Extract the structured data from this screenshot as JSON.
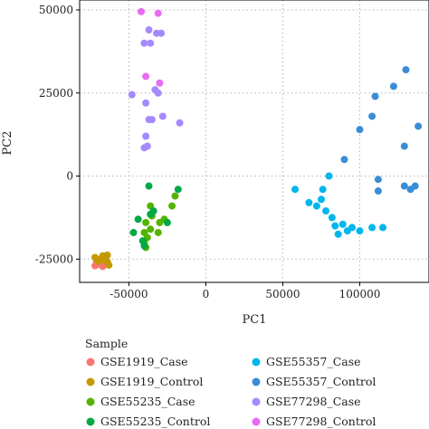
{
  "chart_data": {
    "type": "scatter",
    "xlabel": "PC1",
    "ylabel": "PC2",
    "xlim": [
      -82000,
      145000
    ],
    "ylim": [
      -32000,
      53000
    ],
    "x_ticks": [
      -50000,
      0,
      50000,
      100000
    ],
    "x_tick_labels": [
      "-50000",
      "0",
      "50000",
      "100000"
    ],
    "y_ticks": [
      -25000,
      0,
      25000,
      50000
    ],
    "y_tick_labels": [
      "-25000",
      "0",
      "25000",
      "50000"
    ],
    "grid": true,
    "legend_title": "Sample",
    "legend_position": "bottom",
    "series": [
      {
        "name": "GSE1919_Case",
        "color": "#F8766D",
        "points": [
          [
            -72000,
            -27000
          ],
          [
            -70000,
            -26000
          ],
          [
            -67000,
            -27200
          ],
          [
            -69000,
            -25200
          ],
          [
            -65000,
            -26500
          ],
          [
            -71000,
            -25600
          ],
          [
            -68000,
            -26800
          ]
        ]
      },
      {
        "name": "GSE1919_Control",
        "color": "#C49A00",
        "points": [
          [
            -72000,
            -24500
          ],
          [
            -67000,
            -24000
          ],
          [
            -64000,
            -23800
          ],
          [
            -66000,
            -25200
          ],
          [
            -64000,
            -25800
          ],
          [
            -70000,
            -25600
          ],
          [
            -63000,
            -26800
          ]
        ]
      },
      {
        "name": "GSE55235_Case",
        "color": "#53B400",
        "points": [
          [
            -40000,
            -20000
          ],
          [
            -39000,
            -21500
          ],
          [
            -38000,
            -18500
          ],
          [
            -40000,
            -17000
          ],
          [
            -36000,
            -16000
          ],
          [
            -39000,
            -14000
          ],
          [
            -35000,
            -12000
          ],
          [
            -31000,
            -17000
          ],
          [
            -27000,
            -13000
          ],
          [
            -22000,
            -9000
          ],
          [
            -20000,
            -6000
          ],
          [
            -30000,
            -14000
          ],
          [
            -36000,
            -9000
          ]
        ]
      },
      {
        "name": "GSE55235_Control",
        "color": "#00A846",
        "points": [
          [
            -47000,
            -17000
          ],
          [
            -44000,
            -13000
          ],
          [
            -41000,
            -19500
          ],
          [
            -36000,
            -11500
          ],
          [
            -34000,
            -10500
          ],
          [
            -25000,
            -14000
          ],
          [
            -18000,
            -4000
          ],
          [
            -37000,
            -3000
          ],
          [
            -40000,
            -21000
          ]
        ]
      },
      {
        "name": "GSE55357_Case",
        "color": "#00B6EB",
        "points": [
          [
            58000,
            -4000
          ],
          [
            67000,
            -8000
          ],
          [
            72000,
            -9000
          ],
          [
            75000,
            -7000
          ],
          [
            78000,
            -10500
          ],
          [
            82000,
            -12500
          ],
          [
            84000,
            -15000
          ],
          [
            86000,
            -17500
          ],
          [
            89000,
            -14500
          ],
          [
            92000,
            -16500
          ],
          [
            95000,
            -15500
          ],
          [
            100000,
            -16500
          ],
          [
            108000,
            -15500
          ],
          [
            115000,
            -15500
          ],
          [
            76000,
            -4000
          ],
          [
            80000,
            0
          ]
        ]
      },
      {
        "name": "GSE55357_Control",
        "color": "#3A8CD6",
        "points": [
          [
            130000,
            32000
          ],
          [
            122000,
            27000
          ],
          [
            110000,
            24000
          ],
          [
            100000,
            14000
          ],
          [
            108000,
            18000
          ],
          [
            112000,
            -1000
          ],
          [
            112000,
            -4500
          ],
          [
            90000,
            5000
          ],
          [
            138000,
            15000
          ],
          [
            129000,
            9000
          ],
          [
            129000,
            -3000
          ],
          [
            133000,
            -4000
          ],
          [
            136000,
            -3000
          ]
        ]
      },
      {
        "name": "GSE77298_Case",
        "color": "#A58AFF",
        "points": [
          [
            -40000,
            40000
          ],
          [
            -37000,
            44000
          ],
          [
            -36000,
            40000
          ],
          [
            -32000,
            43000
          ],
          [
            -29000,
            43000
          ],
          [
            -33000,
            26000
          ],
          [
            -31000,
            25000
          ],
          [
            -39000,
            22000
          ],
          [
            -37000,
            17000
          ],
          [
            -35000,
            17000
          ],
          [
            -38000,
            9000
          ],
          [
            -40000,
            8500
          ],
          [
            -39000,
            12000
          ],
          [
            -48000,
            24500
          ],
          [
            -28000,
            18000
          ],
          [
            -17000,
            16000
          ]
        ]
      },
      {
        "name": "GSE77298_Control",
        "color": "#E76BF3",
        "points": [
          [
            -42000,
            49500
          ],
          [
            -31000,
            49000
          ],
          [
            -39000,
            30000
          ],
          [
            -30000,
            28000
          ]
        ]
      }
    ]
  }
}
